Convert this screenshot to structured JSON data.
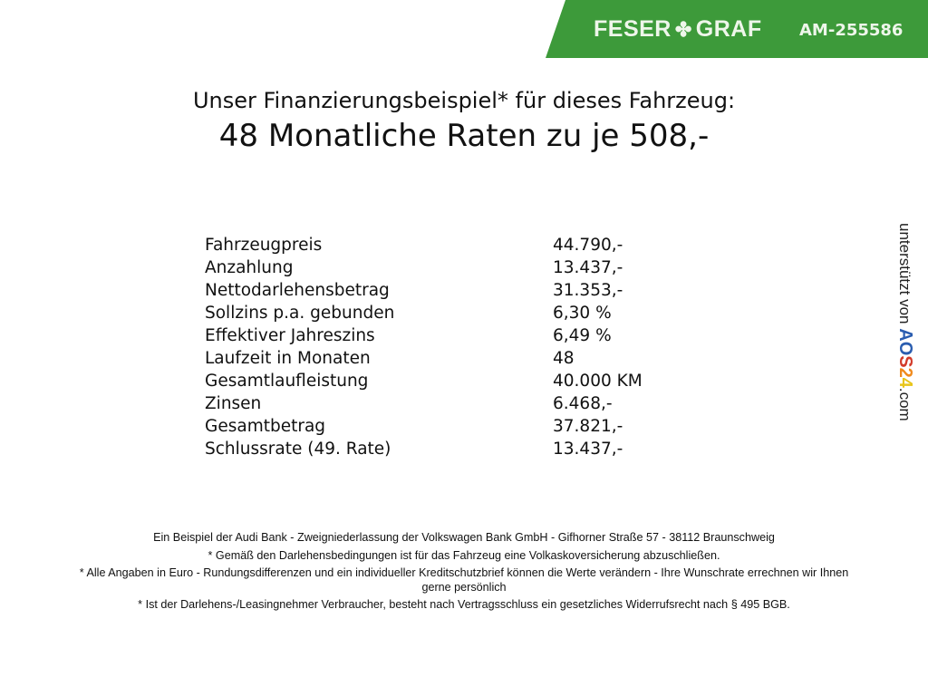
{
  "banner": {
    "brand_left": "FESER",
    "brand_right": "GRAF",
    "brand_icon": "clover-icon",
    "code": "AM-255586",
    "color": "#3d9a3a"
  },
  "heading": {
    "line1": "Unser Finanzierungsbeispiel* für dieses Fahrzeug:",
    "line2": "48 Monatliche Raten zu je 508,-"
  },
  "rows": [
    {
      "label": "Fahrzeugpreis",
      "value": "44.790,-"
    },
    {
      "label": "Anzahlung",
      "value": "13.437,-"
    },
    {
      "label": "Nettodarlehensbetrag",
      "value": "31.353,-"
    },
    {
      "label": "Sollzins p.a. gebunden",
      "value": "6,30 %"
    },
    {
      "label": "Effektiver Jahreszins",
      "value": "6,49 %"
    },
    {
      "label": "Laufzeit in Monaten",
      "value": "48"
    },
    {
      "label": "Gesamtlaufleistung",
      "value": "40.000 KM"
    },
    {
      "label": "Zinsen",
      "value": "6.468,-"
    },
    {
      "label": "Gesamtbetrag",
      "value": "37.821,-"
    },
    {
      "label": "Schlussrate (49. Rate)",
      "value": "13.437,-"
    }
  ],
  "sponsor": {
    "prefix": "unterstützt von",
    "logo_letters": [
      "A",
      "O",
      "S",
      "2",
      "4"
    ],
    "logo_colors": [
      "#2a5db0",
      "#2a5db0",
      "#d23b2a",
      "#f08a1c",
      "#e8c51a"
    ],
    "suffix": ".com"
  },
  "footer": [
    "Ein Beispiel der Audi Bank - Zweigniederlassung der Volkswagen Bank GmbH - Gifhorner Straße 57 - 38112 Braunschweig",
    "* Gemäß den Darlehensbedingungen ist für das Fahrzeug eine Volkaskoversicherung abzuschließen.",
    "* Alle Angaben in Euro - Rundungsdifferenzen und ein individueller Kreditschutzbrief können die Werte verändern - Ihre Wunschrate errechnen wir Ihnen gerne persönlich",
    "* Ist der Darlehens-/Leasingnehmer Verbraucher, besteht nach Vertragsschluss ein gesetzliches Widerrufsrecht nach § 495 BGB."
  ]
}
